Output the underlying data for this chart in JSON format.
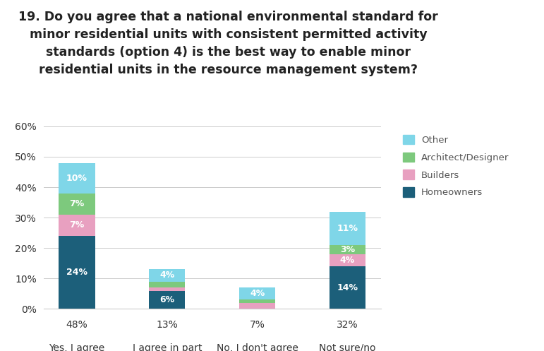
{
  "title_lines": [
    "19. Do you agree that a national environmental standard for",
    "minor residential units with consistent permitted activity",
    "standards (option 4) is the best way to enable minor",
    "residential units in the resource management system?"
  ],
  "categories": [
    "Yes, I agree",
    "I agree in part",
    "No, I don't agree",
    "Not sure/no\npreference"
  ],
  "x_labels_pct": [
    "48%",
    "13%",
    "7%",
    "32%"
  ],
  "segments": {
    "Homeowners": [
      24,
      6,
      0,
      14
    ],
    "Builders": [
      7,
      1,
      2,
      4
    ],
    "Architect/Designer": [
      7,
      2,
      1,
      3
    ],
    "Other": [
      10,
      4,
      4,
      11
    ]
  },
  "colors": {
    "Homeowners": "#1c5f7a",
    "Builders": "#e8a0c0",
    "Architect/Designer": "#7dc97d",
    "Other": "#7fd6e8"
  },
  "segment_labels": {
    "Homeowners": [
      "24%",
      "6%",
      "",
      "14%"
    ],
    "Builders": [
      "7%",
      "",
      "",
      "4%"
    ],
    "Architect/Designer": [
      "7%",
      "",
      "",
      "3%"
    ],
    "Other": [
      "10%",
      "4%",
      "4%",
      "11%"
    ]
  },
  "ylim": [
    0,
    60
  ],
  "yticks": [
    0,
    10,
    20,
    30,
    40,
    50,
    60
  ],
  "ytick_labels": [
    "0%",
    "10%",
    "20%",
    "30%",
    "40%",
    "50%",
    "60%"
  ],
  "legend_order": [
    "Other",
    "Architect/Designer",
    "Builders",
    "Homeowners"
  ],
  "label_color": "#ffffff",
  "label_fontsize": 9,
  "title_fontsize": 12.5,
  "axis_label_fontsize": 10,
  "background_color": "#ffffff",
  "grid_color": "#cccccc",
  "bar_width": 0.4,
  "legend_text_color": "#555555"
}
